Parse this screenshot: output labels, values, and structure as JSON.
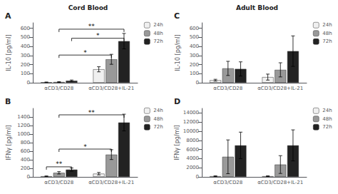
{
  "chart_data": [
    {
      "type": "bar",
      "title": "Cord Blood",
      "subtitle": "A",
      "ylabel": "IL-10 [pg/ml]",
      "categories": [
        "αCD3/CD28",
        "αCD3/CD28+IL-21"
      ],
      "series": [
        {
          "name": "24h",
          "color": "#f0f0f0",
          "values": [
            5,
            148
          ],
          "errors": [
            3,
            28
          ]
        },
        {
          "name": "48h",
          "color": "#999999",
          "values": [
            8,
            258
          ],
          "errors": [
            4,
            55
          ]
        },
        {
          "name": "72h",
          "color": "#222222",
          "values": [
            22,
            458
          ],
          "errors": [
            8,
            85
          ]
        }
      ],
      "ylim": [
        0,
        660
      ],
      "yticks": [
        0,
        100,
        200,
        300,
        400,
        500,
        600
      ],
      "grid": false,
      "legend": "upper right",
      "annotations": [
        {
          "text": "*",
          "y": 305,
          "from": [
            "αCD3/CD28",
            "48h"
          ],
          "to": [
            "αCD3/CD28+IL-21",
            "48h"
          ]
        },
        {
          "text": "*",
          "y": 490,
          "from": [
            "αCD3/CD28",
            "72h"
          ],
          "to": [
            "αCD3/CD28+IL-21",
            "72h"
          ]
        },
        {
          "text": "**",
          "y": 590,
          "from": [
            "αCD3/CD28",
            "48h"
          ],
          "to": [
            "αCD3/CD28+IL-21",
            "72h"
          ]
        }
      ]
    },
    {
      "type": "bar",
      "subtitle": "B",
      "ylabel": "IFNγ [pg/ml]",
      "categories": [
        "αCD3/CD28",
        "αCD3/CD28+IL-21"
      ],
      "series": [
        {
          "name": "24h",
          "color": "#f0f0f0",
          "values": [
            15,
            75
          ],
          "errors": [
            7,
            28
          ]
        },
        {
          "name": "48h",
          "color": "#999999",
          "values": [
            95,
            520
          ],
          "errors": [
            28,
            115
          ]
        },
        {
          "name": "72h",
          "color": "#222222",
          "values": [
            170,
            1270
          ],
          "errors": [
            38,
            195
          ]
        }
      ],
      "ylim": [
        0,
        1600
      ],
      "yticks": [
        0,
        200,
        400,
        600,
        800,
        1000,
        1200,
        1400
      ],
      "grid": false,
      "legend": "upper right",
      "annotations": [
        {
          "text": "**",
          "y": 235,
          "from": [
            "αCD3/CD28",
            "24h"
          ],
          "to": [
            "αCD3/CD28",
            "72h"
          ]
        },
        {
          "text": "*",
          "y": 650,
          "from": [
            "αCD3/CD28",
            "48h"
          ],
          "to": [
            "αCD3/CD28+IL-21",
            "48h"
          ]
        },
        {
          "text": "**",
          "y": 1450,
          "from": [
            "αCD3/CD28",
            "48h"
          ],
          "to": [
            "αCD3/CD28+IL-21",
            "72h"
          ]
        }
      ]
    },
    {
      "type": "bar",
      "title": "Adult Blood",
      "subtitle": "C",
      "ylabel": "IL-10 [pg/ml]",
      "categories": [
        "αCD3/CD28",
        "αCD3/CD28+IL-21"
      ],
      "series": [
        {
          "name": "24h",
          "color": "#f0f0f0",
          "values": [
            28,
            62
          ],
          "errors": [
            10,
            33
          ]
        },
        {
          "name": "48h",
          "color": "#999999",
          "values": [
            158,
            142
          ],
          "errors": [
            78,
            78
          ]
        },
        {
          "name": "72h",
          "color": "#222222",
          "values": [
            152,
            348
          ],
          "errors": [
            78,
            168
          ]
        }
      ],
      "ylim": [
        0,
        660
      ],
      "yticks": [
        0,
        100,
        200,
        300,
        400,
        500,
        600
      ],
      "grid": false,
      "legend": "upper right"
    },
    {
      "type": "bar",
      "subtitle": "D",
      "ylabel": "IFNγ [pg/ml]",
      "categories": [
        "αCD3/CD28",
        "αCD3/CD28+IL-21"
      ],
      "series": [
        {
          "name": "24h",
          "color": "#f0f0f0",
          "values": [
            150,
            150
          ],
          "errors": [
            80,
            80
          ]
        },
        {
          "name": "48h",
          "color": "#999999",
          "values": [
            4400,
            2700
          ],
          "errors": [
            3700,
            1950
          ]
        },
        {
          "name": "72h",
          "color": "#222222",
          "values": [
            6900,
            6900
          ],
          "errors": [
            2900,
            3400
          ]
        }
      ],
      "ylim": [
        0,
        15000
      ],
      "yticks": [
        0,
        2000,
        4000,
        6000,
        8000,
        10000,
        12000,
        14000
      ],
      "grid": false,
      "legend": "upper right"
    }
  ]
}
